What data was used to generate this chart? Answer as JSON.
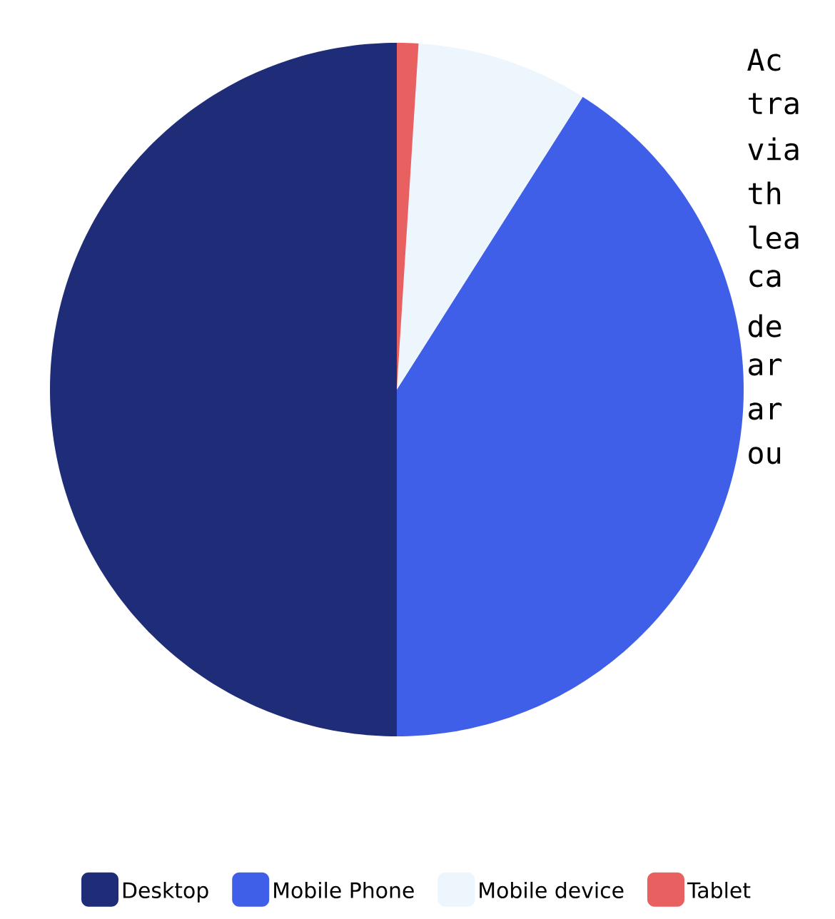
{
  "chart_data": {
    "type": "pie",
    "categories": [
      "Desktop",
      "Mobile Phone",
      "Mobile device",
      "Tablet"
    ],
    "values": [
      50,
      41,
      8,
      1
    ],
    "colors": [
      "#1f2d78",
      "#3f5fe8",
      "#eef6fd",
      "#e86060"
    ],
    "legend": "bottom",
    "annotations": [
      "Ac",
      "tra",
      "via",
      "th",
      "lea",
      "ca",
      "de",
      "ar",
      "ar",
      "ou"
    ]
  }
}
